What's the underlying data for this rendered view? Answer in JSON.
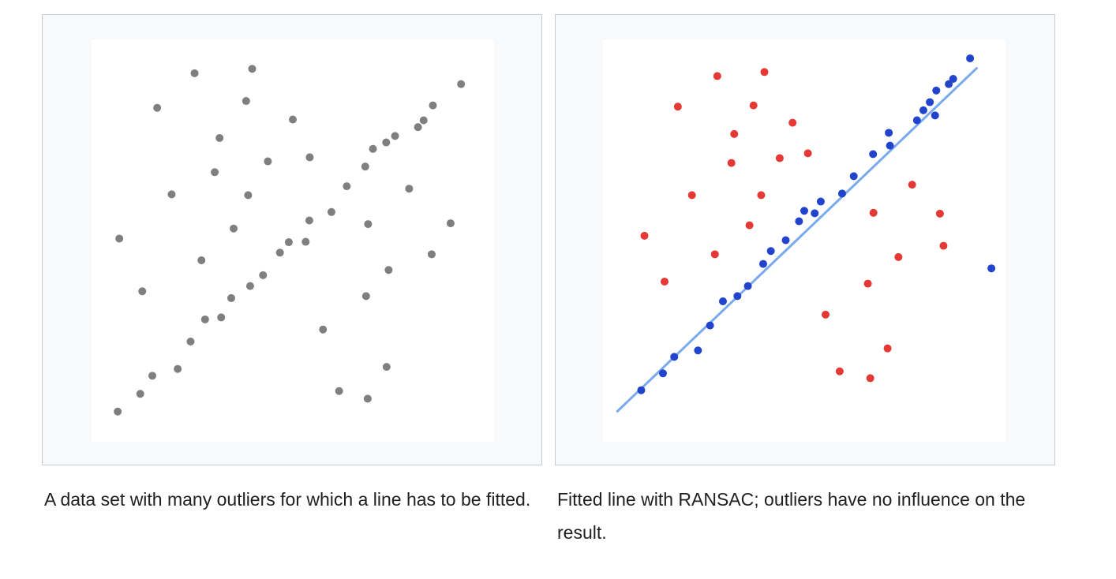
{
  "captions": {
    "left": "A data set with many outliers for which a line has to be fitted.",
    "right": "Fitted line with RANSAC; outliers have no influence on the result."
  },
  "chart_data": [
    {
      "type": "scatter",
      "title": "",
      "xlabel": "",
      "ylabel": "",
      "xlim": [
        0,
        10
      ],
      "ylim": [
        0,
        10
      ],
      "grid": false,
      "axes_visible": false,
      "point_color": "#7f7f7f",
      "series": [
        {
          "points": [
            [
              0.65,
              0.75
            ],
            [
              1.21,
              1.19
            ],
            [
              1.51,
              1.64
            ],
            [
              2.14,
              1.81
            ],
            [
              2.46,
              2.49
            ],
            [
              2.82,
              3.04
            ],
            [
              3.22,
              3.09
            ],
            [
              3.47,
              3.57
            ],
            [
              3.94,
              3.87
            ],
            [
              4.26,
              4.14
            ],
            [
              4.68,
              4.7
            ],
            [
              4.9,
              4.96
            ],
            [
              5.32,
              4.97
            ],
            [
              5.41,
              5.5
            ],
            [
              5.96,
              5.71
            ],
            [
              6.34,
              6.35
            ],
            [
              6.8,
              6.84
            ],
            [
              6.99,
              7.28
            ],
            [
              7.32,
              7.44
            ],
            [
              7.54,
              7.6
            ],
            [
              8.11,
              7.82
            ],
            [
              8.25,
              7.99
            ],
            [
              8.48,
              8.36
            ],
            [
              9.18,
              8.89
            ],
            [
              0.69,
              5.05
            ],
            [
              1.26,
              3.74
            ],
            [
              1.99,
              6.15
            ],
            [
              2.73,
              4.51
            ],
            [
              2.56,
              9.16
            ],
            [
              3.06,
              6.7
            ],
            [
              3.18,
              7.55
            ],
            [
              3.53,
              5.3
            ],
            [
              3.89,
              6.13
            ],
            [
              3.84,
              8.47
            ],
            [
              3.99,
              9.27
            ],
            [
              4.38,
              6.97
            ],
            [
              5.0,
              8.01
            ],
            [
              5.42,
              7.07
            ],
            [
              6.87,
              5.41
            ],
            [
              6.82,
              3.62
            ],
            [
              7.38,
              4.27
            ],
            [
              7.89,
              6.29
            ],
            [
              8.45,
              4.66
            ],
            [
              8.92,
              5.43
            ],
            [
              5.75,
              2.79
            ],
            [
              6.15,
              1.26
            ],
            [
              6.86,
              1.07
            ],
            [
              7.33,
              1.86
            ],
            [
              1.63,
              8.3
            ]
          ]
        }
      ]
    },
    {
      "type": "scatter",
      "title": "",
      "xlabel": "",
      "ylabel": "",
      "xlim": [
        0,
        10
      ],
      "ylim": [
        0,
        10
      ],
      "grid": false,
      "axes_visible": false,
      "series": [
        {
          "color": "#2244cc",
          "points": [
            [
              0.95,
              1.28
            ],
            [
              1.49,
              1.7
            ],
            [
              1.77,
              2.11
            ],
            [
              2.36,
              2.27
            ],
            [
              2.66,
              2.89
            ],
            [
              2.98,
              3.49
            ],
            [
              3.34,
              3.62
            ],
            [
              3.6,
              3.87
            ],
            [
              3.98,
              4.42
            ],
            [
              4.17,
              4.74
            ],
            [
              4.54,
              5.01
            ],
            [
              4.87,
              5.48
            ],
            [
              5.0,
              5.74
            ],
            [
              5.26,
              5.68
            ],
            [
              5.41,
              5.97
            ],
            [
              5.94,
              6.17
            ],
            [
              6.23,
              6.6
            ],
            [
              6.71,
              7.15
            ],
            [
              7.1,
              7.68
            ],
            [
              7.13,
              7.36
            ],
            [
              7.8,
              7.99
            ],
            [
              7.96,
              8.24
            ],
            [
              8.12,
              8.44
            ],
            [
              8.25,
              8.11
            ],
            [
              8.28,
              8.73
            ],
            [
              8.59,
              8.89
            ],
            [
              8.7,
              9.02
            ],
            [
              9.12,
              9.53
            ],
            [
              9.65,
              4.31
            ]
          ]
        },
        {
          "color": "#e53935",
          "points": [
            [
              1.03,
              5.12
            ],
            [
              1.53,
              3.98
            ],
            [
              1.86,
              8.33
            ],
            [
              2.21,
              6.13
            ],
            [
              2.78,
              4.66
            ],
            [
              2.84,
              9.09
            ],
            [
              3.19,
              6.93
            ],
            [
              3.26,
              7.65
            ],
            [
              3.64,
              5.38
            ],
            [
              3.74,
              8.36
            ],
            [
              3.93,
              6.13
            ],
            [
              4.01,
              9.19
            ],
            [
              4.39,
              7.05
            ],
            [
              4.71,
              7.93
            ],
            [
              5.09,
              7.17
            ],
            [
              5.53,
              3.16
            ],
            [
              5.88,
              1.75
            ],
            [
              6.58,
              3.93
            ],
            [
              6.64,
              1.58
            ],
            [
              6.72,
              5.69
            ],
            [
              7.07,
              2.32
            ],
            [
              7.34,
              4.59
            ],
            [
              7.68,
              6.39
            ],
            [
              8.46,
              4.87
            ],
            [
              8.37,
              5.67
            ]
          ]
        }
      ],
      "fit_line": {
        "color": "#7aaaee",
        "points": [
          [
            0.34,
            0.74
          ],
          [
            9.3,
            9.3
          ]
        ]
      }
    }
  ]
}
